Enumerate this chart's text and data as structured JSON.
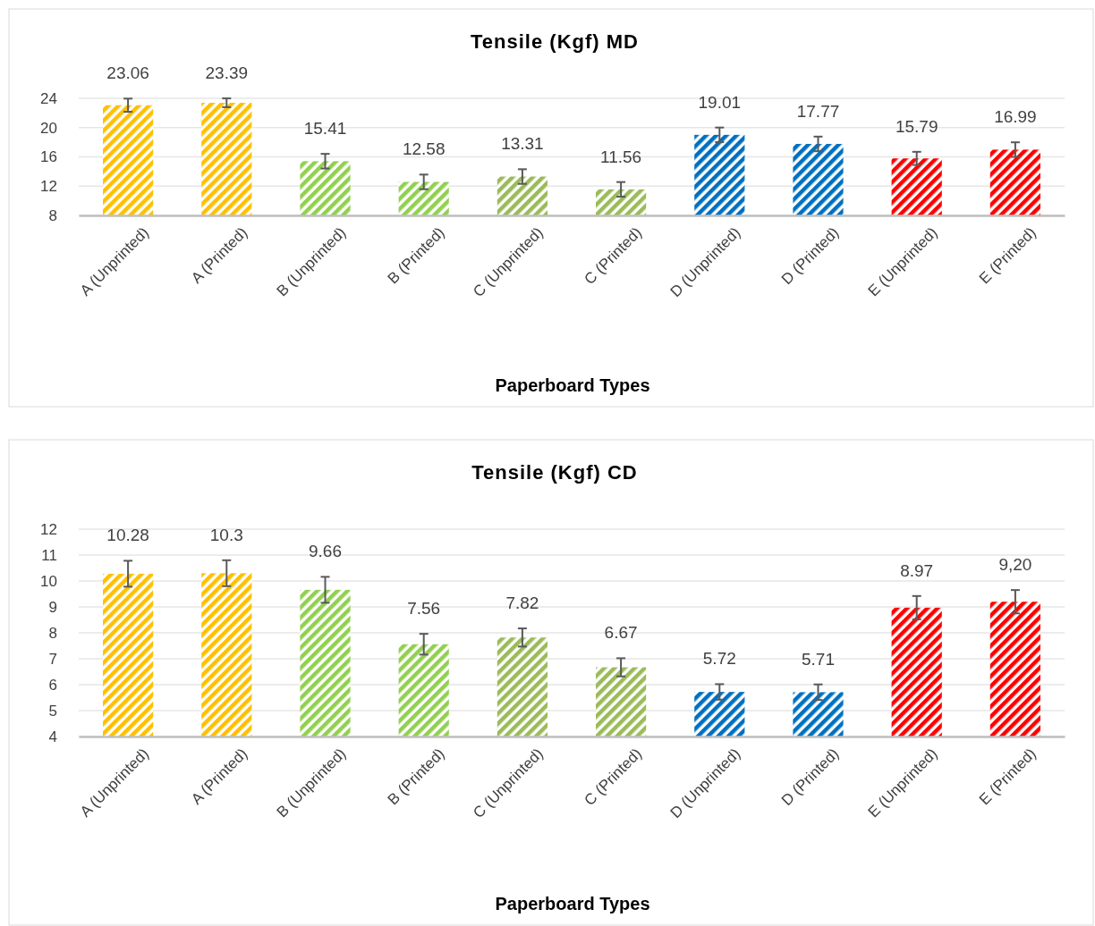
{
  "chart_data": [
    {
      "type": "bar",
      "title": "Tensile (Kgf) MD",
      "xlabel": "Paperboard Types",
      "categories": [
        "A (Unprinted)",
        "A (Printed)",
        "B (Unprinted)",
        "B (Printed)",
        "C (Unprinted)",
        "C (Printed)",
        "D (Unprinted)",
        "D (Printed)",
        "E (Unprinted)",
        "E (Printed)"
      ],
      "values": [
        23.06,
        23.39,
        15.41,
        12.58,
        13.31,
        11.56,
        19.01,
        17.77,
        15.79,
        16.99
      ],
      "errors": [
        0.9,
        0.6,
        1.0,
        1.0,
        1.0,
        1.0,
        1.0,
        1.0,
        0.9,
        1.0
      ],
      "value_labels": [
        "23.06",
        "23.39",
        "15.41",
        "12.58",
        "13.31",
        "11.56",
        "19.01",
        "17.77",
        "15.79",
        "16.99"
      ],
      "colors": [
        "#ffc000",
        "#ffc000",
        "#92d050",
        "#92d050",
        "#9bbb59",
        "#9bbb59",
        "#0070c0",
        "#0070c0",
        "#ff0000",
        "#ff0000"
      ],
      "ylim": [
        8,
        24
      ],
      "yticks": [
        8,
        12,
        16,
        20,
        24
      ],
      "grid": "y"
    },
    {
      "type": "bar",
      "title": "Tensile (Kgf) CD",
      "xlabel": "Paperboard Types",
      "categories": [
        "A (Unprinted)",
        "A (Printed)",
        "B (Unprinted)",
        "B (Printed)",
        "C (Unprinted)",
        "C (Printed)",
        "D (Unprinted)",
        "D (Printed)",
        "E (Unprinted)",
        "E (Printed)"
      ],
      "values": [
        10.28,
        10.3,
        9.66,
        7.56,
        7.82,
        6.67,
        5.72,
        5.71,
        8.97,
        9.2
      ],
      "errors": [
        0.5,
        0.5,
        0.5,
        0.4,
        0.35,
        0.35,
        0.3,
        0.3,
        0.45,
        0.45
      ],
      "value_labels": [
        "10.28",
        "10.3",
        "9.66",
        "7.56",
        "7.82",
        "6.67",
        "5.72",
        "5.71",
        "8.97",
        "9,20"
      ],
      "colors": [
        "#ffc000",
        "#ffc000",
        "#92d050",
        "#92d050",
        "#9bbb59",
        "#9bbb59",
        "#0070c0",
        "#0070c0",
        "#ff0000",
        "#ff0000"
      ],
      "ylim": [
        4,
        12
      ],
      "yticks": [
        4,
        5,
        6,
        7,
        8,
        9,
        10,
        11,
        12
      ],
      "grid": "y"
    }
  ]
}
